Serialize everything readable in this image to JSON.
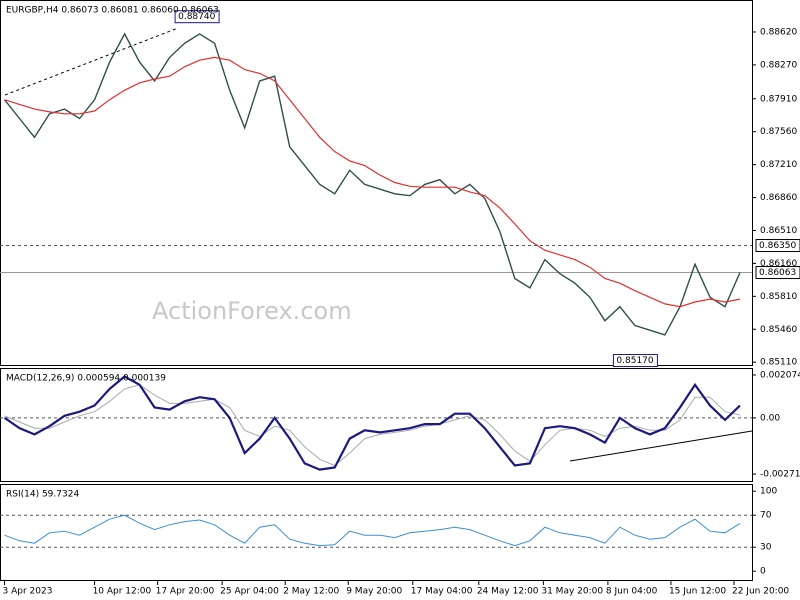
{
  "chart_data": [
    {
      "type": "line",
      "title": "EURGBP,H4 0.86073 0.86081 0.86060 0.86063",
      "watermark": "ActionForex.com",
      "x": [
        0,
        1,
        2,
        3,
        4,
        5,
        6,
        7,
        8,
        9,
        10,
        11,
        12,
        13,
        14,
        15,
        16,
        17,
        18,
        19,
        20,
        21,
        22,
        23,
        24,
        25,
        26,
        27,
        28,
        29,
        30,
        31,
        32,
        33,
        34,
        35,
        36,
        37,
        38,
        39,
        40,
        41,
        42,
        43,
        44,
        45,
        46,
        47,
        48,
        49
      ],
      "xlim": [
        -0.3,
        49.8
      ],
      "xticks": [
        {
          "value": 0,
          "label": "3 Apr 2023"
        },
        {
          "value": 6,
          "label": "10 Apr 12:00"
        },
        {
          "value": 10.2,
          "label": "17 Apr 20:00"
        },
        {
          "value": 14.5,
          "label": "25 Apr 04:00"
        },
        {
          "value": 18.7,
          "label": "2 May 12:00"
        },
        {
          "value": 22.9,
          "label": "9 May 20:00"
        },
        {
          "value": 27.2,
          "label": "17 May 04:00"
        },
        {
          "value": 31.6,
          "label": "24 May 12:00"
        },
        {
          "value": 35.9,
          "label": "31 May 20:00"
        },
        {
          "value": 40.2,
          "label": "8 Jun 04:00"
        },
        {
          "value": 44.4,
          "label": "15 Jun 12:00"
        },
        {
          "value": 48.6,
          "label": "22 Jun 20:00"
        }
      ],
      "ylim": [
        0.8508,
        0.8896
      ],
      "yticks": [
        {
          "value": 0.8862,
          "label": "0.88620"
        },
        {
          "value": 0.8827,
          "label": "0.88270"
        },
        {
          "value": 0.8791,
          "label": "0.87910"
        },
        {
          "value": 0.8756,
          "label": "0.87560"
        },
        {
          "value": 0.8721,
          "label": "0.87210"
        },
        {
          "value": 0.8686,
          "label": "0.86860"
        },
        {
          "value": 0.8651,
          "label": "0.86510"
        },
        {
          "value": 0.8616,
          "label": "0.86160"
        },
        {
          "value": 0.8581,
          "label": "0.85810"
        },
        {
          "value": 0.8546,
          "label": "0.85460"
        },
        {
          "value": 0.8511,
          "label": "0.85110"
        }
      ],
      "levels": [
        {
          "value": 0.8635,
          "label": "0.86350",
          "style": "dashed"
        },
        {
          "value": 0.86063,
          "label": "0.86063",
          "style": "solid"
        }
      ],
      "annotations": [
        {
          "text": "0.88740",
          "x": 11.5,
          "y": 0.8874
        },
        {
          "text": "0.85170",
          "x": 40.7,
          "y": 0.8517
        }
      ],
      "series": [
        {
          "color": "#2f4f4f",
          "width": 1.4,
          "values": [
            0.879,
            0.877,
            0.875,
            0.8775,
            0.878,
            0.877,
            0.879,
            0.883,
            0.886,
            0.883,
            0.881,
            0.8835,
            0.885,
            0.886,
            0.885,
            0.88,
            0.876,
            0.881,
            0.8815,
            0.874,
            0.872,
            0.87,
            0.869,
            0.8715,
            0.87,
            0.8695,
            0.869,
            0.8688,
            0.87,
            0.8705,
            0.869,
            0.87,
            0.8685,
            0.865,
            0.86,
            0.859,
            0.862,
            0.8605,
            0.8595,
            0.858,
            0.8555,
            0.857,
            0.855,
            0.8545,
            0.854,
            0.857,
            0.8615,
            0.858,
            0.857,
            0.86063
          ]
        },
        {
          "color": "#e0302e",
          "width": 1.2,
          "values": [
            0.879,
            0.8785,
            0.878,
            0.8777,
            0.8775,
            0.8775,
            0.8778,
            0.879,
            0.88,
            0.8808,
            0.8812,
            0.8815,
            0.8825,
            0.8832,
            0.8835,
            0.8832,
            0.8822,
            0.8818,
            0.881,
            0.879,
            0.877,
            0.875,
            0.8735,
            0.8725,
            0.872,
            0.871,
            0.8702,
            0.8698,
            0.8697,
            0.8697,
            0.8697,
            0.8692,
            0.8688,
            0.8675,
            0.8658,
            0.864,
            0.863,
            0.8625,
            0.862,
            0.8612,
            0.86,
            0.8595,
            0.8587,
            0.858,
            0.8573,
            0.857,
            0.8575,
            0.8578,
            0.8575,
            0.8578
          ]
        }
      ]
    },
    {
      "type": "line",
      "title": "MACD(12,26,9) 0.000594 0.000139",
      "ylim": [
        -0.00305,
        0.00241
      ],
      "yticks": [
        0.002074,
        {
          "value": 0,
          "label": "0.00"
        },
        -0.002716
      ],
      "levels": [
        {
          "value": 0,
          "style": "dashed"
        }
      ],
      "series": [
        {
          "color": "#aaaaaa",
          "width": 1,
          "values": [
            0.0001,
            -0.0002,
            -0.0005,
            -0.0005,
            -0.0002,
            0.0001,
            0.0003,
            0.0008,
            0.0014,
            0.0016,
            0.0011,
            0.0007,
            0.0007,
            0.0008,
            0.0009,
            0.0005,
            -0.0006,
            -0.0009,
            -0.0004,
            -0.0006,
            -0.0014,
            -0.002,
            -0.0023,
            -0.0017,
            -0.001,
            -0.0008,
            -0.0007,
            -0.0006,
            -0.0004,
            -0.0003,
            -0.0001,
            0.0001,
            -0.0001,
            -0.0008,
            -0.0016,
            -0.0021,
            -0.0013,
            -0.0006,
            -0.0005,
            -0.0006,
            -0.0009,
            -0.0005,
            -0.0004,
            -0.0006,
            -0.0006,
            -0.0001,
            0.001,
            0.001,
            0.0003,
            0.000139
          ]
        },
        {
          "color": "#1a1a80",
          "width": 2.2,
          "values": [
            0,
            -0.0005,
            -0.0008,
            -0.0004,
            0.0001,
            0.0003,
            0.0006,
            0.0014,
            0.002,
            0.0016,
            0.0005,
            0.0004,
            0.0008,
            0.001,
            0.0009,
            0,
            -0.0017,
            -0.001,
            0,
            -0.001,
            -0.0022,
            -0.0025,
            -0.0024,
            -0.001,
            -0.0006,
            -0.0007,
            -0.0006,
            -0.0005,
            -0.0003,
            -0.0003,
            0.0002,
            0.0002,
            -0.0005,
            -0.0014,
            -0.0023,
            -0.0022,
            -0.0005,
            -0.0004,
            -0.0005,
            -0.0008,
            -0.0012,
            0,
            -0.0005,
            -0.0008,
            -0.0005,
            0.0005,
            0.0016,
            0.0006,
            -0.0001,
            0.000594
          ]
        }
      ]
    },
    {
      "type": "line",
      "title": "RSI(14) 59.7324",
      "ylim": [
        -11,
        109
      ],
      "yticks": [
        100,
        70,
        30,
        0
      ],
      "levels": [
        {
          "value": 70,
          "style": "dashed"
        },
        {
          "value": 30,
          "style": "dashed"
        }
      ],
      "series": [
        {
          "color": "#3a8fd6",
          "width": 1,
          "values": [
            45,
            38,
            35,
            48,
            50,
            45,
            55,
            65,
            70,
            60,
            52,
            58,
            62,
            64,
            58,
            45,
            35,
            55,
            58,
            40,
            35,
            32,
            33,
            50,
            45,
            45,
            42,
            48,
            50,
            52,
            55,
            52,
            45,
            38,
            32,
            38,
            55,
            48,
            45,
            42,
            35,
            55,
            45,
            40,
            42,
            55,
            65,
            50,
            48,
            59.7324
          ]
        }
      ]
    }
  ]
}
